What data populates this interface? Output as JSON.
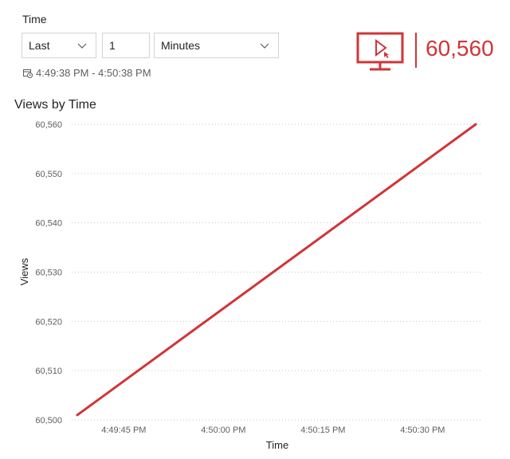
{
  "filter": {
    "label": "Time",
    "period": "Last",
    "amount": "1",
    "unit": "Minutes",
    "range_text": "4:49:38 PM - 4:50:38 PM"
  },
  "card": {
    "icon": "monitor-play-icon",
    "value": "60,560",
    "color": "#d13438"
  },
  "chart_data": {
    "type": "line",
    "title": "Views by Time",
    "xlabel": "Time",
    "ylabel": "Views",
    "ylim": [
      60500,
      60560
    ],
    "yticks": [
      60500,
      60510,
      60520,
      60530,
      60540,
      60550,
      60560
    ],
    "ytick_labels": [
      "60,500",
      "60,510",
      "60,520",
      "60,530",
      "60,540",
      "60,550",
      "60,560"
    ],
    "xlim_seconds": [
      38.5,
      38
    ],
    "xticks": [
      "4:49:45 PM",
      "4:50:00 PM",
      "4:50:15 PM",
      "4:50:30 PM"
    ],
    "series": [
      {
        "color": "#d13438",
        "x": [
          "4:49:38 PM",
          "4:50:38 PM"
        ],
        "y": [
          60501,
          60560
        ]
      }
    ],
    "grid": "horizontal dotted",
    "legend": "none"
  }
}
